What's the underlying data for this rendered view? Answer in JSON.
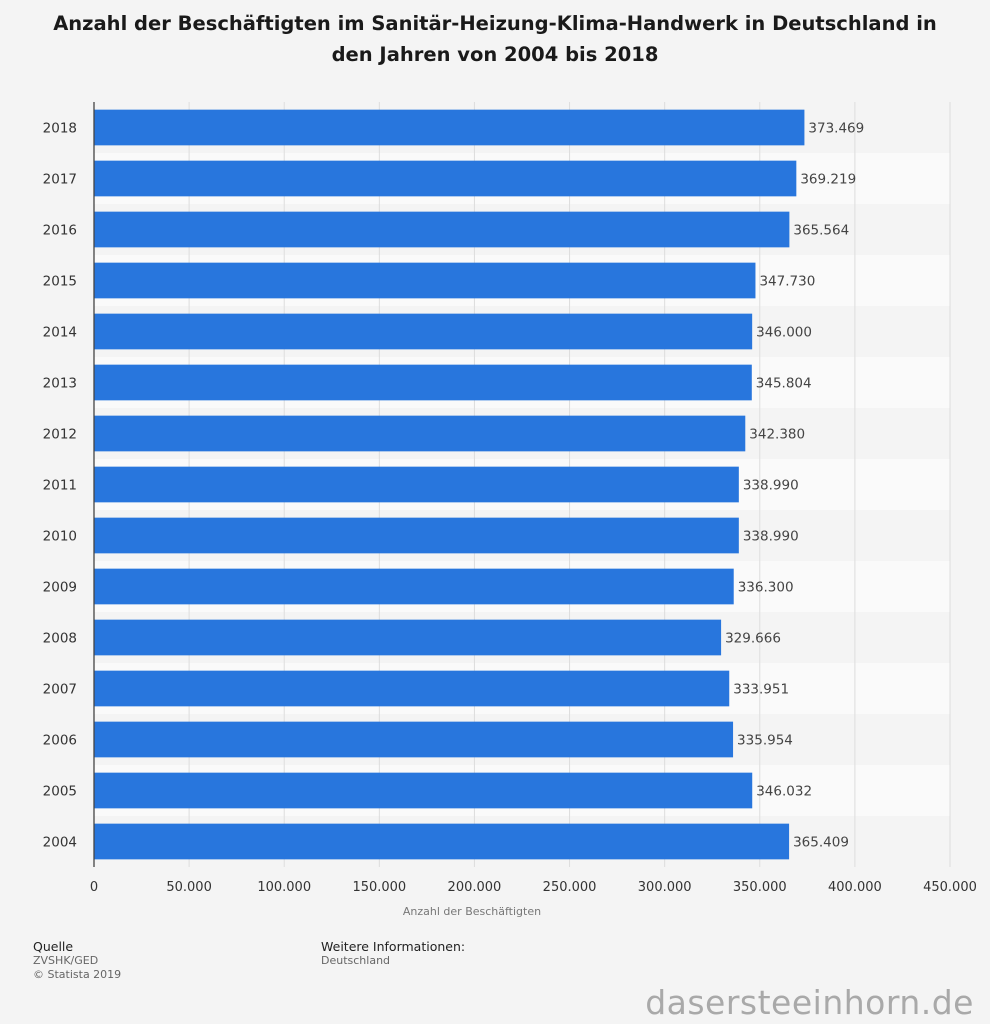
{
  "chart_data": {
    "type": "bar",
    "orientation": "horizontal",
    "title": "Anzahl der Beschäftigten im Sanitär-Heizung-Klima-Handwerk in Deutschland in den Jahren von 2004 bis 2018",
    "xlabel": "Anzahl der Beschäftigten",
    "ylabel": "",
    "xlim": [
      0,
      450000
    ],
    "x_ticks": [
      "0",
      "50.000",
      "100.000",
      "150.000",
      "200.000",
      "250.000",
      "300.000",
      "350.000",
      "400.000",
      "450.000"
    ],
    "categories": [
      "2018",
      "2017",
      "2016",
      "2015",
      "2014",
      "2013",
      "2012",
      "2011",
      "2010",
      "2009",
      "2008",
      "2007",
      "2006",
      "2005",
      "2004"
    ],
    "values": [
      373469,
      369219,
      365564,
      347730,
      346000,
      345804,
      342380,
      338990,
      338990,
      336300,
      329666,
      333951,
      335954,
      346032,
      365409
    ],
    "value_labels": [
      "373.469",
      "369.219",
      "365.564",
      "347.730",
      "346.000",
      "345.804",
      "342.380",
      "338.990",
      "338.990",
      "336.300",
      "329.666",
      "333.951",
      "335.954",
      "346.032",
      "365.409"
    ],
    "bar_color": "#2876dd",
    "grid": true
  },
  "footer": {
    "source_label": "Quelle",
    "source_lines": [
      "ZVSHK/GED",
      "© Statista 2019"
    ],
    "info_label": "Weitere Informationen:",
    "info_lines": [
      "Deutschland"
    ]
  },
  "watermark": "dasersteeinhorn.de"
}
